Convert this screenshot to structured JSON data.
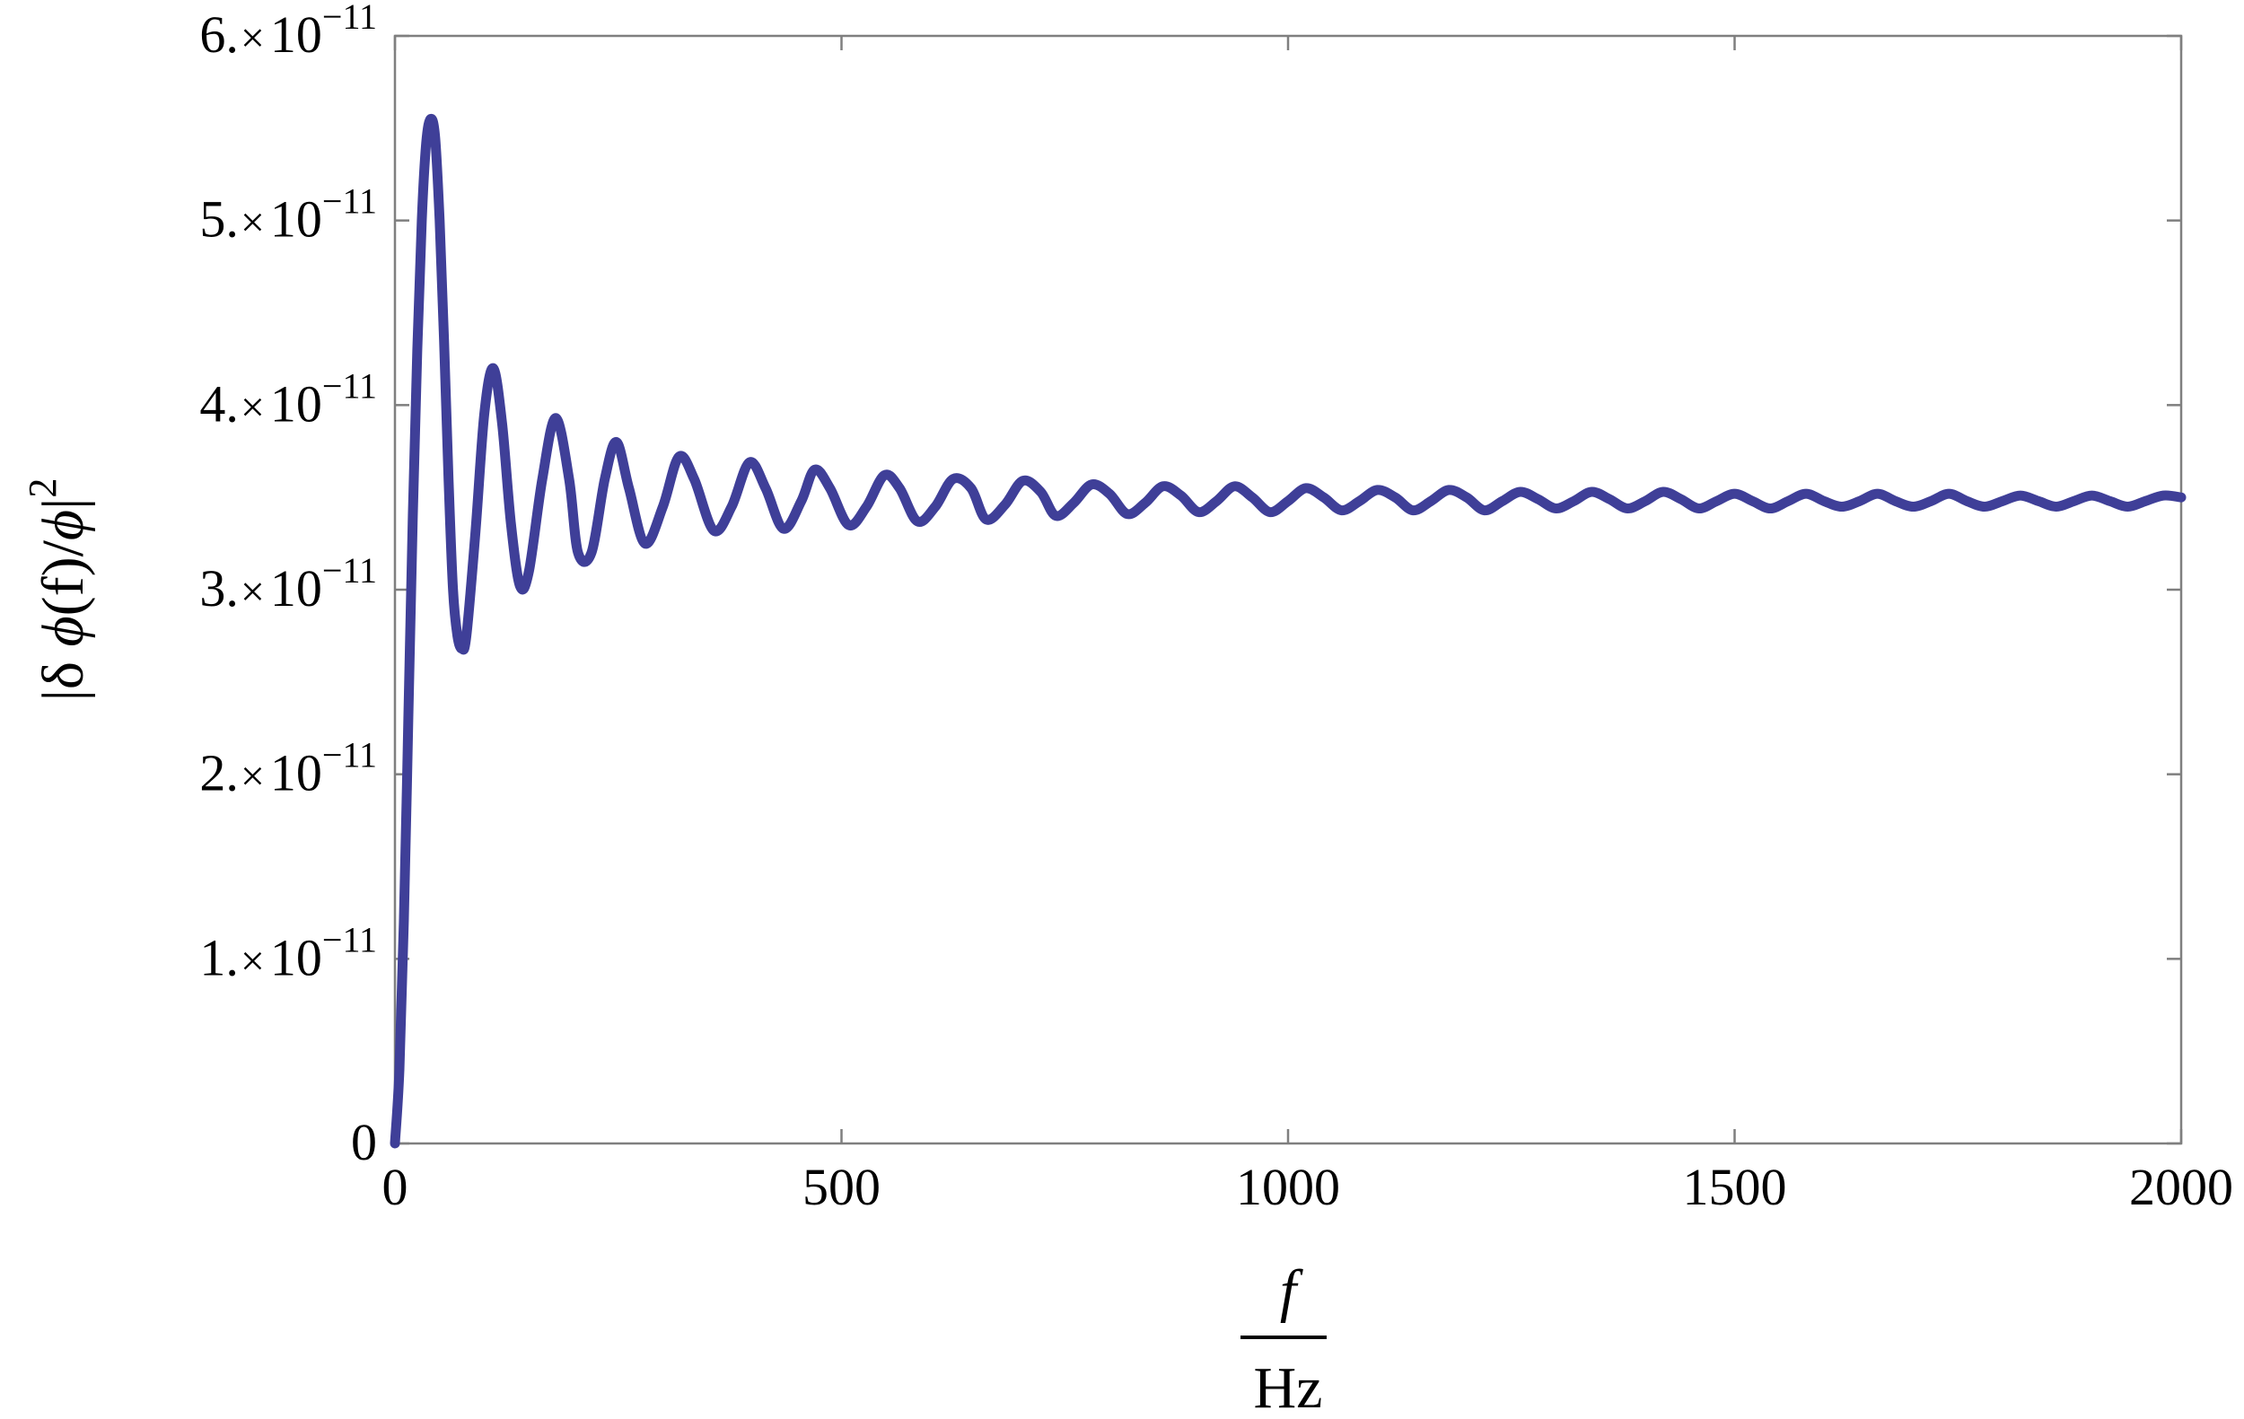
{
  "chart_data": {
    "type": "line",
    "xlim": [
      0,
      2000
    ],
    "ylim": [
      0,
      6e-11
    ],
    "grid": false,
    "xticks": [
      0,
      500,
      1000,
      1500,
      2000
    ],
    "xtick_labels": [
      "0",
      "500",
      "1000",
      "1500",
      "2000"
    ],
    "yticks": [
      0,
      1e-11,
      2e-11,
      3e-11,
      4e-11,
      5e-11,
      6e-11
    ],
    "ytick_labels": [
      {
        "mantissa": "0",
        "times": "",
        "base": "",
        "exponent": ""
      },
      {
        "mantissa": "1.",
        "times": "×",
        "base": "10",
        "exponent": "−11"
      },
      {
        "mantissa": "2.",
        "times": "×",
        "base": "10",
        "exponent": "−11"
      },
      {
        "mantissa": "3.",
        "times": "×",
        "base": "10",
        "exponent": "−11"
      },
      {
        "mantissa": "4.",
        "times": "×",
        "base": "10",
        "exponent": "−11"
      },
      {
        "mantissa": "5.",
        "times": "×",
        "base": "10",
        "exponent": "−11"
      },
      {
        "mantissa": "6.",
        "times": "×",
        "base": "10",
        "exponent": "−11"
      }
    ],
    "xlabel": {
      "numerator": "f",
      "denominator": "Hz"
    },
    "ylabel": {
      "prefix": "|δ ",
      "phi1": "ϕ",
      "mid": "(f)/",
      "phi2": "ϕ",
      "suffix": "|",
      "exponent": "2"
    },
    "series": [
      {
        "color": "#3f3f98",
        "x": [
          0,
          5,
          10,
          15,
          20,
          25,
          30,
          35,
          40,
          45,
          50,
          55,
          60,
          65,
          70,
          75,
          80,
          90,
          100,
          110,
          120,
          130,
          140,
          150,
          165,
          180,
          195,
          205,
          220,
          235,
          248,
          262,
          280,
          300,
          318,
          335,
          357,
          377,
          397,
          415,
          435,
          455,
          470,
          487,
          508,
          528,
          548,
          565,
          585,
          605,
          625,
          645,
          662,
          683,
          703,
          723,
          740,
          760,
          780,
          800,
          820,
          840,
          860,
          880,
          900,
          920,
          940,
          960,
          980,
          1000,
          1020,
          1040,
          1060,
          1080,
          1100,
          1120,
          1140,
          1160,
          1180,
          1200,
          1220,
          1240,
          1260,
          1280,
          1300,
          1320,
          1340,
          1360,
          1380,
          1400,
          1420,
          1440,
          1460,
          1480,
          1500,
          1520,
          1540,
          1560,
          1580,
          1600,
          1620,
          1640,
          1660,
          1680,
          1700,
          1720,
          1740,
          1760,
          1780,
          1800,
          1820,
          1840,
          1860,
          1880,
          1900,
          1920,
          1940,
          1960,
          1980,
          2000
        ],
        "y": [
          0,
          4e-12,
          1.2e-11,
          2.3e-11,
          3.4e-11,
          4.3e-11,
          5e-11,
          5.42e-11,
          5.55e-11,
          5.45e-11,
          5e-11,
          4.35e-11,
          3.6e-11,
          3e-11,
          2.75e-11,
          2.68e-11,
          2.75e-11,
          3.3e-11,
          3.95e-11,
          4.2e-11,
          3.9e-11,
          3.35e-11,
          3.02e-11,
          3.1e-11,
          3.6e-11,
          3.93e-11,
          3.6e-11,
          3.2e-11,
          3.2e-11,
          3.6e-11,
          3.8e-11,
          3.55e-11,
          3.25e-11,
          3.45e-11,
          3.72e-11,
          3.6e-11,
          3.32e-11,
          3.45e-11,
          3.69e-11,
          3.55e-11,
          3.33e-11,
          3.48e-11,
          3.65e-11,
          3.55e-11,
          3.35e-11,
          3.45e-11,
          3.62e-11,
          3.55e-11,
          3.37e-11,
          3.45e-11,
          3.6e-11,
          3.55e-11,
          3.38e-11,
          3.46e-11,
          3.59e-11,
          3.53e-11,
          3.4e-11,
          3.47e-11,
          3.57e-11,
          3.52e-11,
          3.41e-11,
          3.47e-11,
          3.56e-11,
          3.51e-11,
          3.42e-11,
          3.48e-11,
          3.56e-11,
          3.5e-11,
          3.42e-11,
          3.48e-11,
          3.55e-11,
          3.5e-11,
          3.43e-11,
          3.48e-11,
          3.54e-11,
          3.5e-11,
          3.43e-11,
          3.48e-11,
          3.54e-11,
          3.5e-11,
          3.43e-11,
          3.48e-11,
          3.53e-11,
          3.49e-11,
          3.44e-11,
          3.48e-11,
          3.53e-11,
          3.49e-11,
          3.44e-11,
          3.48e-11,
          3.53e-11,
          3.49e-11,
          3.44e-11,
          3.48e-11,
          3.52e-11,
          3.48e-11,
          3.44e-11,
          3.48e-11,
          3.52e-11,
          3.48e-11,
          3.45e-11,
          3.48e-11,
          3.52e-11,
          3.48e-11,
          3.45e-11,
          3.48e-11,
          3.52e-11,
          3.48e-11,
          3.45e-11,
          3.48e-11,
          3.51e-11,
          3.48e-11,
          3.45e-11,
          3.48e-11,
          3.51e-11,
          3.48e-11,
          3.45e-11,
          3.48e-11,
          3.51e-11,
          3.5e-11
        ]
      }
    ]
  }
}
